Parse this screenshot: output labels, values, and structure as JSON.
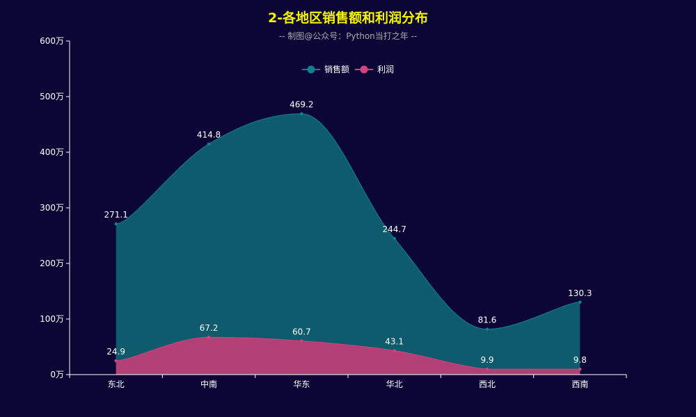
{
  "chart_data": {
    "type": "area",
    "title": "2-各地区销售额和利润分布",
    "subtitle": "-- 制图@公众号：Python当打之年 --",
    "categories": [
      "东北",
      "中南",
      "华东",
      "华北",
      "西北",
      "西南"
    ],
    "series": [
      {
        "name": "销售额",
        "values": [
          271.1,
          414.8,
          469.2,
          244.7,
          81.6,
          130.3
        ],
        "color": "#10818e",
        "fill": "#0e5b6e"
      },
      {
        "name": "利润",
        "values": [
          24.9,
          67.2,
          60.7,
          43.1,
          9.9,
          9.8
        ],
        "color": "#d9407d",
        "fill": "#b14175"
      }
    ],
    "y_ticks": [
      "0万",
      "100万",
      "200万",
      "300万",
      "400万",
      "500万",
      "600万"
    ],
    "ylim": [
      0,
      600
    ],
    "smooth": true,
    "legend_position": "top-center",
    "grid": false
  },
  "colors": {
    "background": "#0c0636",
    "title": "#f5f500",
    "subtitle": "#aaaaaa",
    "axis": "#ffffff",
    "text": "#ffffff"
  }
}
